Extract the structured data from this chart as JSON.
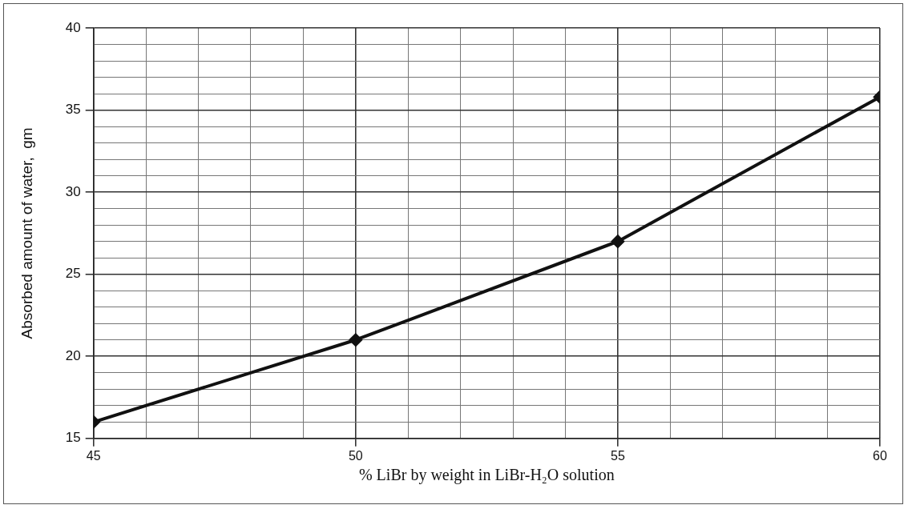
{
  "chart_data": {
    "type": "line",
    "xlabel": "% LiBr by weight in LiBr-H₂O solution",
    "ylabel": "Absorbed amount of water,  gm",
    "x": [
      45,
      50,
      55,
      60
    ],
    "series": [
      {
        "color": "#111111",
        "values": [
          16,
          21,
          27,
          35.8
        ]
      }
    ],
    "xlim": [
      45,
      60
    ],
    "xticks": [
      45,
      {
        "value": 46,
        "label": null
      },
      {
        "value": 47,
        "label": null
      },
      {
        "value": 48,
        "label": null
      },
      {
        "value": 49,
        "label": null
      },
      50,
      {
        "value": 51,
        "label": null
      },
      {
        "value": 52,
        "label": null
      },
      {
        "value": 53,
        "label": null
      },
      {
        "value": 54,
        "label": null
      },
      55,
      {
        "value": 56,
        "label": null
      },
      {
        "value": 57,
        "label": null
      },
      {
        "value": 58,
        "label": null
      },
      {
        "value": 59,
        "label": null
      },
      60
    ],
    "ylim": [
      15,
      40
    ],
    "yticks": [
      15,
      {
        "value": 16,
        "label": null
      },
      {
        "value": 17,
        "label": null
      },
      {
        "value": 18,
        "label": null
      },
      {
        "value": 19,
        "label": null
      },
      20,
      {
        "value": 21,
        "label": null
      },
      {
        "value": 22,
        "label": null
      },
      {
        "value": 23,
        "label": null
      },
      {
        "value": 24,
        "label": null
      },
      25,
      {
        "value": 26,
        "label": null
      },
      {
        "value": 27,
        "label": null
      },
      {
        "value": 28,
        "label": null
      },
      {
        "value": 29,
        "label": null
      },
      30,
      {
        "value": 31,
        "label": null
      },
      {
        "value": 32,
        "label": null
      },
      {
        "value": 33,
        "label": null
      },
      {
        "value": 34,
        "label": null
      },
      35,
      {
        "value": 36,
        "label": null
      },
      {
        "value": 37,
        "label": null
      },
      {
        "value": 38,
        "label": null
      },
      {
        "value": 39,
        "label": null
      },
      40
    ],
    "grid": true,
    "legend": false,
    "marker": "diamond",
    "line_style": "solid"
  }
}
